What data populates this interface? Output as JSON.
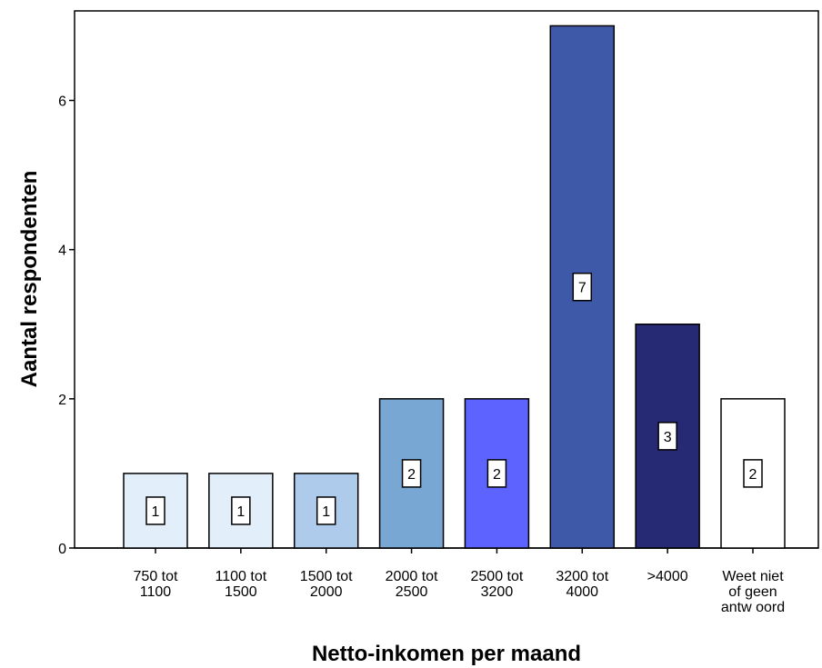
{
  "chart_data": {
    "type": "bar",
    "title": "",
    "xlabel": "Netto-inkomen per maand",
    "ylabel": "Aantal respondenten",
    "ylim": [
      0,
      7.2
    ],
    "yticks": [
      "0",
      "2",
      "4",
      "6"
    ],
    "grid": false,
    "categories": [
      [
        "750 tot",
        "1100"
      ],
      [
        "1100 tot",
        "1500"
      ],
      [
        "1500 tot",
        "2000"
      ],
      [
        "2000 tot",
        "2500"
      ],
      [
        "2500 tot",
        "3200"
      ],
      [
        "3200 tot",
        "4000"
      ],
      [
        ">4000"
      ],
      [
        "Weet niet",
        "of geen",
        "antw oord"
      ]
    ],
    "values": [
      1,
      1,
      1,
      2,
      2,
      7,
      3,
      2
    ],
    "data_labels": [
      "1",
      "1",
      "1",
      "2",
      "2",
      "7",
      "3",
      "2"
    ],
    "colors": [
      "#e3eefb",
      "#e3eefb",
      "#aecbeb",
      "#79a7d4",
      "#5d63fe",
      "#3e59a8",
      "#262a74",
      "#ffffff"
    ]
  }
}
